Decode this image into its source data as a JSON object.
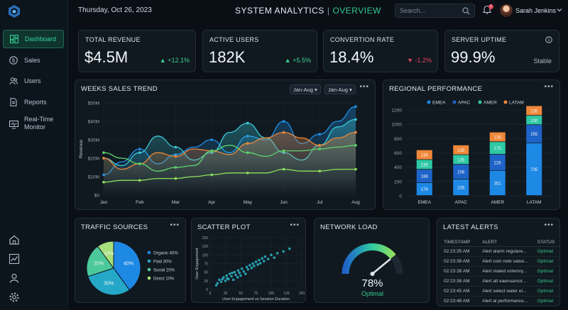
{
  "header": {
    "date": "Thursday, Oct 26, 2023",
    "title_main": "SYSTEM ANALYTICS",
    "title_sep": "|",
    "title_sub": "OVERVIEW",
    "search_placeholder": "Search...",
    "notification_count": "1",
    "user_name": "Sarah Jenkins"
  },
  "sidebar": {
    "items": [
      {
        "label": "Dashboard",
        "icon": "grid-icon"
      },
      {
        "label": "Sales",
        "icon": "dollar-icon"
      },
      {
        "label": "Users",
        "icon": "users-icon"
      },
      {
        "label": "Reports",
        "icon": "document-icon"
      },
      {
        "label": "Real-Time Monitor",
        "icon": "monitor-icon"
      }
    ],
    "bottom_icons": [
      "home-icon",
      "chart-icon",
      "user-icon",
      "settings-icon"
    ]
  },
  "kpis": [
    {
      "label": "TOTAL REVENUE",
      "value": "$4.5M",
      "change": "+12.1%",
      "dir": "up"
    },
    {
      "label": "ACTIVE USERS",
      "value": "182K",
      "change": "+5.5%",
      "dir": "up"
    },
    {
      "label": "CONVERTION RATE",
      "value": "18.4%",
      "change": "-1.2%",
      "dir": "down"
    },
    {
      "label": "SERVER UPTIME",
      "value": "99.9%",
      "change": "Stable",
      "dir": "none"
    }
  ],
  "sales_trend": {
    "title": "WEEKS SALES TREND",
    "select1": "Jan-Aug",
    "select2": "Jan-Aug",
    "menu": "•••"
  },
  "regional": {
    "title": "REGIONAL PERFORMANCE",
    "menu": "•••"
  },
  "traffic": {
    "title": "TRAFFIC SOURCES",
    "menu": "•••"
  },
  "scatter": {
    "title": "SCATTER PLOT",
    "menu": "•••"
  },
  "network": {
    "title": "NETWORK LOAD",
    "value": "78%",
    "status": "Optimal",
    "load": 0.78
  },
  "alerts": {
    "title": "LATEST ALERTS",
    "menu": "•••",
    "columns": [
      "TIMESTAMP",
      "ALERT",
      "STATUS"
    ],
    "rows": [
      [
        "02:23:35 AM",
        "Alert alarm regulare...",
        "Optimal"
      ],
      [
        "02:23:38 AM",
        "Alert coin note value...",
        "Optimal"
      ],
      [
        "02:23:38 AM",
        "Alert stated sntemry...",
        "Optimal"
      ],
      [
        "02:23:38 AM",
        "Alert atl eaenuarvor...",
        "Optimal"
      ],
      [
        "02:23:45 AM",
        "Alert select water el...",
        "Optimal"
      ],
      [
        "02:23:48 AM",
        "Alert al performance...",
        "Optimal"
      ]
    ]
  },
  "chart_data": [
    {
      "type": "line",
      "title": "WEEKS SALES TREND",
      "ylabel": "Revenue",
      "categories": [
        "Jan",
        "Feb",
        "Mar",
        "Apr",
        "May",
        "Jun",
        "Jul",
        "Aug"
      ],
      "ytick_labels": [
        "$0",
        "$10M",
        "$20M",
        "$30M",
        "$40M",
        "$50M"
      ],
      "ylim": [
        0,
        50
      ],
      "x": [
        0,
        0.5,
        1,
        1.5,
        2,
        2.5,
        3,
        3.5,
        4,
        4.5,
        5,
        5.5,
        6,
        6.5,
        7
      ],
      "series": [
        {
          "color": "#1f8fe5",
          "values": [
            11,
            18,
            25,
            17,
            22,
            26,
            30,
            23,
            32,
            30,
            40,
            28,
            33,
            40,
            48
          ]
        },
        {
          "color": "#3ac8d8",
          "values": [
            20,
            16,
            23,
            32,
            26,
            19,
            23,
            34,
            39,
            31,
            23,
            19,
            27,
            37,
            41
          ]
        },
        {
          "color": "#f0883a",
          "values": [
            20,
            14,
            17,
            23,
            21,
            25,
            24,
            22,
            28,
            31,
            34,
            31,
            27,
            31,
            34
          ]
        },
        {
          "color": "#5fd66b",
          "values": [
            23,
            20,
            17,
            13,
            15,
            16,
            24,
            27,
            23,
            21,
            24,
            24,
            25,
            26,
            27
          ]
        },
        {
          "color": "#8fe05a",
          "values": [
            7,
            8,
            8,
            9,
            9,
            10,
            11,
            12,
            12,
            12,
            14,
            13,
            13,
            14,
            14
          ]
        }
      ],
      "grid": true
    },
    {
      "type": "bar",
      "title": "REGIONAL PERFORMANCE",
      "categories": [
        "EMEA",
        "APAC",
        "AMER",
        "LATAM"
      ],
      "ylim": [
        0,
        1200
      ],
      "yticks": [
        0,
        200,
        400,
        600,
        800,
        1000,
        1200
      ],
      "stacked": true,
      "legend_position": "top",
      "series": [
        {
          "name": "EMEA",
          "color": "#1e88e5",
          "values": [
            179,
            228,
            351,
            735
          ]
        },
        {
          "name": "APAC",
          "color": "#1e63c8",
          "values": [
            188,
            208,
            226,
            255
          ]
        },
        {
          "name": "AMER",
          "color": "#2ec9a4",
          "values": [
            135,
            135,
            175,
            130
          ]
        },
        {
          "name": "LATAM",
          "color": "#f0883a",
          "values": [
            136,
            135,
            135,
            135
          ]
        }
      ]
    },
    {
      "type": "pie",
      "title": "TRAFFIC SOURCES",
      "legend_position": "right",
      "slices": [
        {
          "name": "Organic 40%",
          "label": "40%",
          "value": 40,
          "color": "#1e88e5"
        },
        {
          "name": "Paid 30%",
          "label": "30%",
          "value": 30,
          "color": "#25a8c8"
        },
        {
          "name": "Social 20%",
          "label": "20%",
          "value": 20,
          "color": "#4cc99a"
        },
        {
          "name": "Direct 10%",
          "label": "10%",
          "value": 10,
          "color": "#a6e07a"
        }
      ]
    },
    {
      "type": "scatter",
      "title": "SCATTER PLOT",
      "xlabel": "User Engagement vs Session Duration",
      "ylabel": "User Engagement",
      "xlim": [
        0,
        150
      ],
      "ylim": [
        0,
        150
      ],
      "xticks": [
        0,
        25,
        50,
        75,
        100,
        125,
        150
      ],
      "yticks": [
        0,
        25,
        50,
        75,
        100,
        125,
        150
      ],
      "points": [
        [
          10,
          12
        ],
        [
          12,
          18
        ],
        [
          15,
          28
        ],
        [
          18,
          22
        ],
        [
          20,
          30
        ],
        [
          22,
          35
        ],
        [
          25,
          25
        ],
        [
          27,
          40
        ],
        [
          28,
          32
        ],
        [
          30,
          30
        ],
        [
          32,
          45
        ],
        [
          35,
          38
        ],
        [
          36,
          48
        ],
        [
          38,
          28
        ],
        [
          40,
          50
        ],
        [
          42,
          42
        ],
        [
          45,
          35
        ],
        [
          46,
          55
        ],
        [
          48,
          48
        ],
        [
          50,
          40
        ],
        [
          52,
          60
        ],
        [
          55,
          52
        ],
        [
          58,
          45
        ],
        [
          60,
          65
        ],
        [
          62,
          58
        ],
        [
          65,
          70
        ],
        [
          68,
          62
        ],
        [
          70,
          75
        ],
        [
          72,
          68
        ],
        [
          75,
          80
        ],
        [
          78,
          72
        ],
        [
          80,
          85
        ],
        [
          82,
          76
        ],
        [
          85,
          90
        ],
        [
          88,
          82
        ],
        [
          90,
          95
        ],
        [
          95,
          88
        ],
        [
          100,
          100
        ],
        [
          105,
          92
        ],
        [
          110,
          105
        ],
        [
          120,
          110
        ],
        [
          130,
          118
        ]
      ]
    }
  ]
}
